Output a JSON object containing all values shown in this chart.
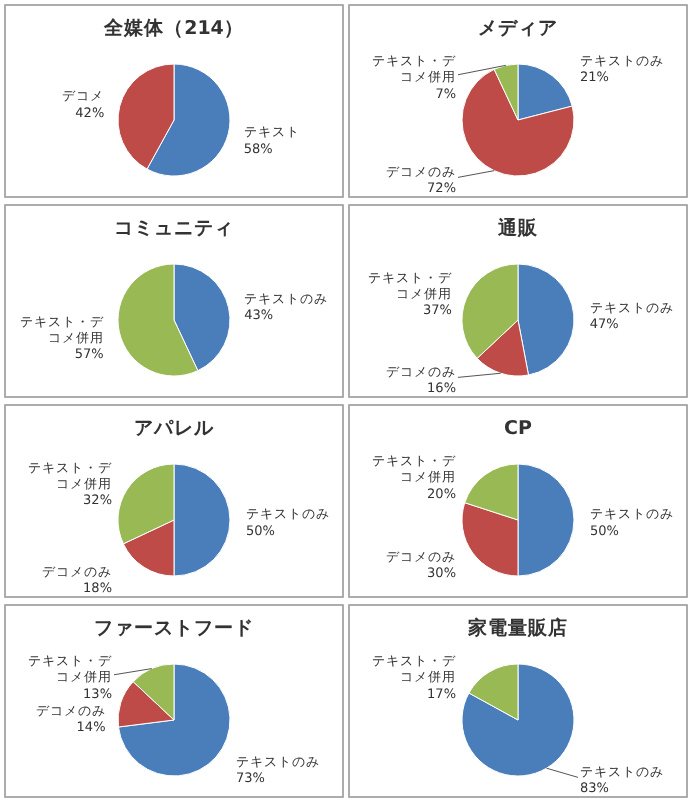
{
  "chart_data": [
    {
      "type": "pie",
      "title": "全媒体（214）",
      "categories": [
        "テキスト",
        "デコメ"
      ],
      "values": [
        58,
        42
      ],
      "value_labels": [
        "58%",
        "42%"
      ],
      "colors": [
        "#4a7ebb",
        "#be4b48"
      ]
    },
    {
      "type": "pie",
      "title": "メディア",
      "categories": [
        "テキストのみ",
        "デコメのみ",
        "テキスト・デコメ併用"
      ],
      "values": [
        21,
        72,
        7
      ],
      "value_labels": [
        "21%",
        "72%",
        "7%"
      ],
      "colors": [
        "#4a7ebb",
        "#be4b48",
        "#98b954"
      ]
    },
    {
      "type": "pie",
      "title": "コミュニティ",
      "categories": [
        "テキストのみ",
        "テキスト・デコメ併用"
      ],
      "values": [
        43,
        57
      ],
      "value_labels": [
        "43%",
        "57%"
      ],
      "colors": [
        "#4a7ebb",
        "#98b954"
      ]
    },
    {
      "type": "pie",
      "title": "通販",
      "categories": [
        "テキストのみ",
        "デコメのみ",
        "テキスト・デコメ併用"
      ],
      "values": [
        47,
        16,
        37
      ],
      "value_labels": [
        "47%",
        "16%",
        "37%"
      ],
      "colors": [
        "#4a7ebb",
        "#be4b48",
        "#98b954"
      ]
    },
    {
      "type": "pie",
      "title": "アパレル",
      "categories": [
        "テキストのみ",
        "デコメのみ",
        "テキスト・デコメ併用"
      ],
      "values": [
        50,
        18,
        32
      ],
      "value_labels": [
        "50%",
        "18%",
        "32%"
      ],
      "colors": [
        "#4a7ebb",
        "#be4b48",
        "#98b954"
      ]
    },
    {
      "type": "pie",
      "title": "CP",
      "categories": [
        "テキストのみ",
        "デコメのみ",
        "テキスト・デコメ併用"
      ],
      "values": [
        50,
        30,
        20
      ],
      "value_labels": [
        "50%",
        "30%",
        "20%"
      ],
      "colors": [
        "#4a7ebb",
        "#be4b48",
        "#98b954"
      ]
    },
    {
      "type": "pie",
      "title": "ファーストフード",
      "categories": [
        "テキストのみ",
        "デコメのみ",
        "テキスト・デコメ併用"
      ],
      "values": [
        73,
        14,
        13
      ],
      "value_labels": [
        "73%",
        "14%",
        "13%"
      ],
      "colors": [
        "#4a7ebb",
        "#be4b48",
        "#98b954"
      ]
    },
    {
      "type": "pie",
      "title": "家電量販店",
      "categories": [
        "テキストのみ",
        "テキスト・デコメ併用"
      ],
      "values": [
        83,
        17
      ],
      "value_labels": [
        "83%",
        "17%"
      ],
      "colors": [
        "#4a7ebb",
        "#98b954"
      ]
    }
  ]
}
